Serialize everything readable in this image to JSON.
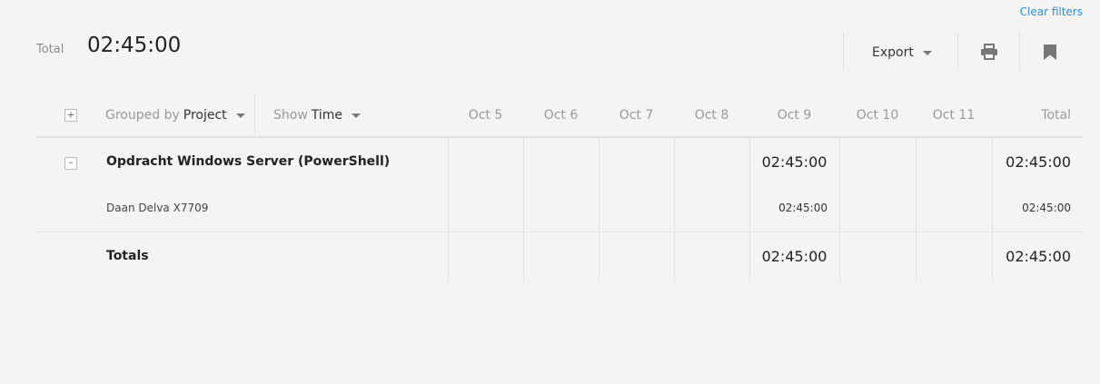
{
  "header": {
    "clear_filters": "Clear filters",
    "total_label": "Total",
    "total_value": "02:45:00",
    "export_label": "Export"
  },
  "table": {
    "grouped_by_prefix": "Grouped by",
    "grouped_by_value": "Project",
    "show_prefix": "Show",
    "show_value": "Time",
    "days": [
      "Oct 5",
      "Oct 6",
      "Oct 7",
      "Oct 8",
      "Oct 9",
      "Oct 10",
      "Oct 11"
    ],
    "total_header": "Total",
    "project": {
      "name": "Opdracht Windows Server (PowerShell)",
      "day_values": [
        "",
        "",
        "",
        "",
        "02:45:00",
        "",
        ""
      ],
      "total": "02:45:00",
      "user": {
        "name": "Daan Delva X7709",
        "day_values": [
          "",
          "",
          "",
          "",
          "02:45:00",
          "",
          ""
        ],
        "total": "02:45:00"
      }
    },
    "totals": {
      "label": "Totals",
      "day_values": [
        "",
        "",
        "",
        "",
        "02:45:00",
        "",
        ""
      ],
      "total": "02:45:00"
    }
  },
  "colors": {
    "link": "#2f8fd8",
    "icon": "#777777"
  },
  "icons": [
    "printer-icon",
    "bookmark-icon",
    "chevron-down-icon"
  ]
}
